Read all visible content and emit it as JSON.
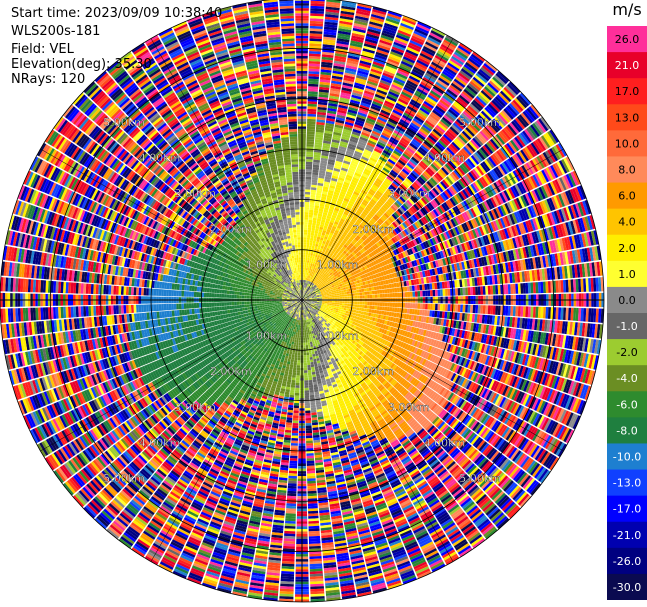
{
  "header": {
    "start_time": "Start time: 2023/09/09 10:38:40",
    "instrument": "WLS200s-181",
    "field": "Field: VEL",
    "elevation": "Elevation(deg): 35.30",
    "nrays": "NRays: 120"
  },
  "chart_data": {
    "type": "heatmap",
    "subtype": "ppi-polar",
    "field": "VEL",
    "units": "m/s",
    "n_rays": 120,
    "max_range_km": 6.0,
    "range_rings_km": [
      1.0,
      2.0,
      3.0,
      4.0,
      5.0,
      6.0
    ],
    "range_labels": [
      "1.00km",
      "2.00km",
      "3.00km",
      "4.00km",
      "5.00km"
    ],
    "colorbar": {
      "title": "m/s",
      "bins": [
        {
          "label": "26.0",
          "color": "#ff2f9a"
        },
        {
          "label": "21.0",
          "color": "#e8002a"
        },
        {
          "label": "17.0",
          "color": "#ff1f1f"
        },
        {
          "label": "13.0",
          "color": "#ff4a1a"
        },
        {
          "label": "10.0",
          "color": "#ff6a3a"
        },
        {
          "label": "8.0",
          "color": "#ff8a5a"
        },
        {
          "label": "6.0",
          "color": "#ff9a00"
        },
        {
          "label": "4.0",
          "color": "#ffc400"
        },
        {
          "label": "2.0",
          "color": "#ffee00"
        },
        {
          "label": "1.0",
          "color": "#ffff30"
        },
        {
          "label": "0.0",
          "color": "#8a8a8a"
        },
        {
          "label": "-1.0",
          "color": "#666666"
        },
        {
          "label": "-2.0",
          "color": "#9ccc30"
        },
        {
          "label": "-4.0",
          "color": "#6b8e23"
        },
        {
          "label": "-6.0",
          "color": "#2e8b2e"
        },
        {
          "label": "-8.0",
          "color": "#1f7f3f"
        },
        {
          "label": "-10.0",
          "color": "#1e7fd0"
        },
        {
          "label": "-13.0",
          "color": "#1040ff"
        },
        {
          "label": "-17.0",
          "color": "#0000ff"
        },
        {
          "label": "-21.0",
          "color": "#0000b0"
        },
        {
          "label": "-26.0",
          "color": "#000080"
        },
        {
          "label": "-30.0",
          "color": "#0a0a50"
        }
      ]
    },
    "wind_pattern": {
      "positive_direction_deg": 45,
      "negative_direction_deg": 225,
      "peak_speed_ms": 8.0,
      "valid_range_km": 3.2
    }
  }
}
